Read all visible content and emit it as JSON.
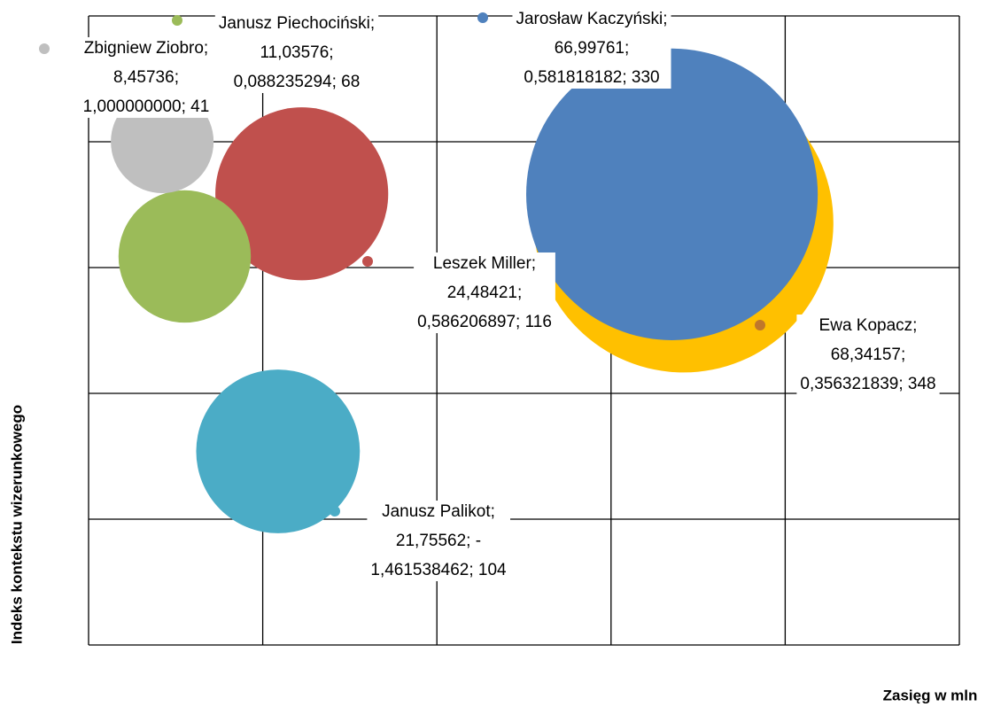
{
  "chart_data": {
    "type": "bubble",
    "xlabel": "Zasięg w mln",
    "ylabel": "Indeks kontekstu wizerunkowego",
    "xlim": [
      0,
      100
    ],
    "xticks": [
      0,
      20,
      40,
      60,
      80,
      100
    ],
    "ylim": [
      -3,
      2
    ],
    "yticks": [
      -3,
      -2,
      -1,
      0,
      1,
      2
    ],
    "grid": true,
    "series": [
      {
        "color": "#ffc000",
        "x": 68.34157,
        "y": 0.356321839,
        "size": 348,
        "labels": [
          "Ewa Kopacz;",
          "68,34157;",
          "0,356321839; 348"
        ]
      },
      {
        "color": "#4f81bd",
        "x": 66.99761,
        "y": 0.581818182,
        "size": 330,
        "labels": [
          "Jarosław Kaczyński;",
          "66,99761;",
          "0,581818182; 330"
        ]
      },
      {
        "color": "#c0504d",
        "x": 24.48421,
        "y": 0.586206897,
        "size": 116,
        "labels": [
          "Leszek Miller;",
          "24,48421;",
          "0,586206897; 116"
        ]
      },
      {
        "color": "#9bbb59",
        "x": 11.03576,
        "y": 0.088235294,
        "size": 68,
        "labels": [
          "Janusz Piechociński;",
          "11,03576;",
          "0,088235294; 68"
        ]
      },
      {
        "color": "#bfbfbf",
        "x": 8.45736,
        "y": 1.0,
        "size": 41,
        "labels": [
          "Zbigniew Ziobro;",
          "8,45736;",
          "1,000000000; 41"
        ]
      },
      {
        "color": "#4bacc6",
        "x": 21.75562,
        "y": -1.461538462,
        "size": 104,
        "labels": [
          "Janusz Palikot;",
          "21,75562; -",
          "1,461538462; 104"
        ]
      }
    ]
  }
}
